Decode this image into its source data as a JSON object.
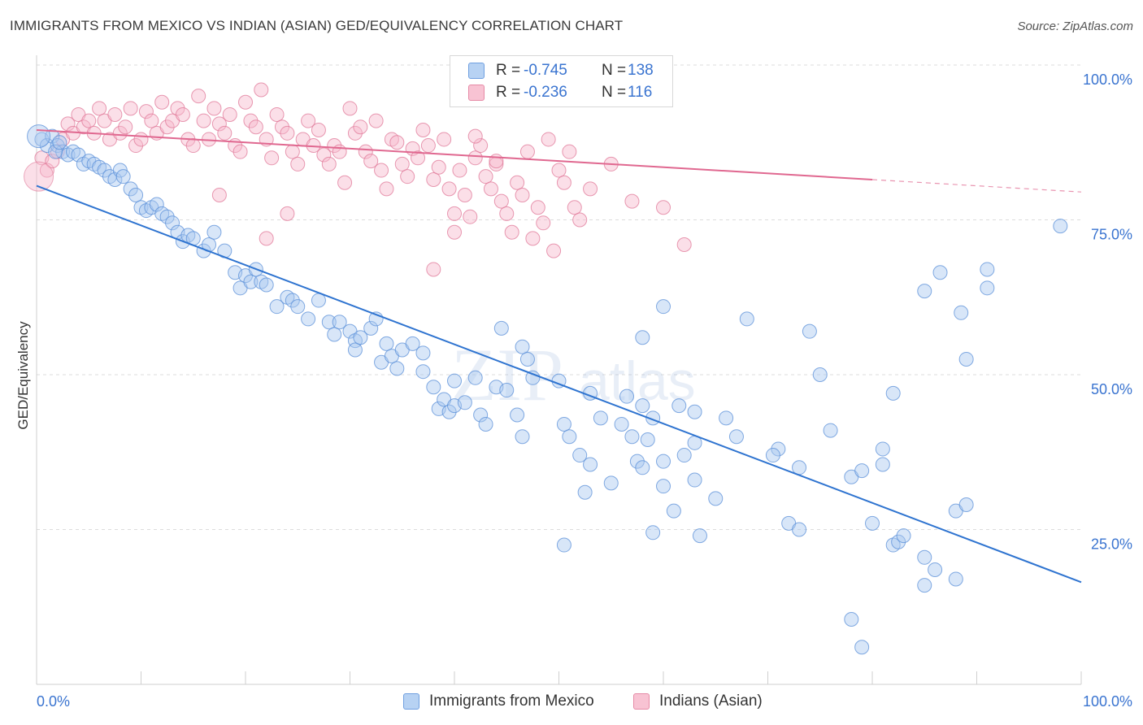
{
  "title": "IMMIGRANTS FROM MEXICO VS INDIAN (ASIAN) GED/EQUIVALENCY CORRELATION CHART",
  "source": "Source: ZipAtlas.com",
  "watermark": {
    "zip": "ZIP",
    "atlas": "atlas"
  },
  "legend": {
    "rows": [
      {
        "r_label": "R =",
        "r_value": "-0.745",
        "n_label": "N =",
        "n_value": "138"
      },
      {
        "r_label": "R =",
        "r_value": "-0.236",
        "n_label": "N =",
        "n_value": "116"
      }
    ]
  },
  "bottom_legend": {
    "series1": "Immigrants from Mexico",
    "series2": "Indians (Asian)"
  },
  "colors": {
    "blue_fill": "#a9c8f0",
    "blue_stroke": "#5a8fd8",
    "blue_line": "#2f74d0",
    "pink_fill": "#f7b9cc",
    "pink_stroke": "#e07898",
    "pink_line": "#e06890",
    "tick_label": "#3a74d0"
  },
  "chart_data": {
    "type": "scatter",
    "title": "IMMIGRANTS FROM MEXICO VS INDIAN (ASIAN) GED/EQUIVALENCY CORRELATION CHART",
    "xlabel": "",
    "ylabel": "GED/Equivalency",
    "xlim": [
      0,
      100
    ],
    "ylim": [
      0,
      100
    ],
    "x_tick_labels": [
      "0.0%",
      "100.0%"
    ],
    "y_tick_labels": [
      "100.0%",
      "75.0%",
      "50.0%",
      "25.0%"
    ],
    "y_tick_values": [
      100,
      75,
      50,
      25
    ],
    "grid": true,
    "legend_position": "top-center",
    "series": [
      {
        "name": "Immigrants from Mexico",
        "R": -0.745,
        "N": 138,
        "trend": {
          "x": [
            0,
            100
          ],
          "y": [
            80.5,
            16.5
          ]
        },
        "points": [
          [
            0.5,
            88
          ],
          [
            1,
            87
          ],
          [
            1.5,
            88.5
          ],
          [
            2,
            87
          ],
          [
            2.5,
            86
          ],
          [
            3,
            85.5
          ],
          [
            1.8,
            86
          ],
          [
            2.2,
            87.5
          ],
          [
            3.5,
            86
          ],
          [
            4,
            85.5
          ],
          [
            4.5,
            84
          ],
          [
            5,
            84.5
          ],
          [
            5.5,
            84
          ],
          [
            6,
            83.5
          ],
          [
            6.5,
            83
          ],
          [
            7,
            82
          ],
          [
            7.5,
            81.5
          ],
          [
            8,
            83
          ],
          [
            8.3,
            82
          ],
          [
            9,
            80
          ],
          [
            9.5,
            79
          ],
          [
            10,
            77
          ],
          [
            10.5,
            76.5
          ],
          [
            11,
            77
          ],
          [
            11.5,
            77.5
          ],
          [
            12,
            76
          ],
          [
            12.5,
            75.5
          ],
          [
            13,
            74.5
          ],
          [
            13.5,
            73
          ],
          [
            14,
            71.5
          ],
          [
            14.5,
            72.5
          ],
          [
            15,
            72
          ],
          [
            16,
            70
          ],
          [
            16.5,
            71
          ],
          [
            17,
            73
          ],
          [
            18,
            70
          ],
          [
            19,
            66.5
          ],
          [
            19.5,
            64
          ],
          [
            20,
            66
          ],
          [
            20.5,
            65
          ],
          [
            21,
            67
          ],
          [
            21.5,
            65
          ],
          [
            22,
            64.5
          ],
          [
            23,
            61
          ],
          [
            24,
            62.5
          ],
          [
            24.5,
            62
          ],
          [
            25,
            61
          ],
          [
            26,
            59
          ],
          [
            27,
            62
          ],
          [
            28,
            58.5
          ],
          [
            28.5,
            56.5
          ],
          [
            29,
            58.5
          ],
          [
            30,
            57
          ],
          [
            30.5,
            55.5
          ],
          [
            30.5,
            54
          ],
          [
            31,
            56
          ],
          [
            32,
            57.5
          ],
          [
            32.5,
            59
          ],
          [
            33,
            52
          ],
          [
            33.5,
            55
          ],
          [
            34,
            53
          ],
          [
            34.5,
            51
          ],
          [
            35,
            54
          ],
          [
            36,
            55
          ],
          [
            37,
            53.5
          ],
          [
            37,
            50.5
          ],
          [
            38,
            48
          ],
          [
            38.5,
            44.5
          ],
          [
            39,
            46
          ],
          [
            39.5,
            44
          ],
          [
            40,
            49
          ],
          [
            40,
            45
          ],
          [
            41,
            45.5
          ],
          [
            42,
            49.5
          ],
          [
            42.5,
            43.5
          ],
          [
            43,
            42
          ],
          [
            44,
            48
          ],
          [
            44.5,
            57.5
          ],
          [
            45,
            47.5
          ],
          [
            46,
            43.5
          ],
          [
            46.5,
            40
          ],
          [
            46.5,
            54.5
          ],
          [
            47,
            52.5
          ],
          [
            47.5,
            49.5
          ],
          [
            50,
            49
          ],
          [
            50.5,
            42
          ],
          [
            51,
            40
          ],
          [
            52,
            37
          ],
          [
            52.5,
            31
          ],
          [
            53,
            35.5
          ],
          [
            54,
            43
          ],
          [
            55,
            32.5
          ],
          [
            56,
            42
          ],
          [
            56.5,
            46.5
          ],
          [
            57,
            40
          ],
          [
            57.5,
            36
          ],
          [
            58,
            45
          ],
          [
            58,
            35
          ],
          [
            58.5,
            39.5
          ],
          [
            59,
            43
          ],
          [
            60,
            32
          ],
          [
            61,
            28
          ],
          [
            62,
            37
          ],
          [
            63,
            39
          ],
          [
            63,
            33
          ],
          [
            65,
            30
          ],
          [
            66,
            43
          ],
          [
            67,
            40
          ],
          [
            71,
            38
          ],
          [
            73,
            35
          ],
          [
            75,
            50
          ],
          [
            78,
            33.5
          ],
          [
            79,
            34.5
          ],
          [
            80,
            26
          ],
          [
            81,
            35.5
          ],
          [
            82,
            22.5
          ],
          [
            82.5,
            23
          ],
          [
            83,
            24
          ],
          [
            85,
            20.5
          ],
          [
            86,
            18.5
          ],
          [
            88,
            28
          ],
          [
            89,
            29
          ],
          [
            85,
            16
          ],
          [
            88,
            17
          ],
          [
            50.5,
            22.5
          ],
          [
            59,
            24.5
          ],
          [
            60,
            36
          ],
          [
            61.5,
            45
          ],
          [
            63.5,
            24
          ],
          [
            53,
            47
          ],
          [
            63,
            44
          ],
          [
            68,
            59
          ],
          [
            72,
            26
          ],
          [
            73,
            25
          ],
          [
            81,
            38
          ],
          [
            89,
            52.5
          ],
          [
            91,
            67
          ],
          [
            98,
            74
          ],
          [
            88.5,
            60
          ],
          [
            58,
            56
          ],
          [
            60,
            61
          ],
          [
            74,
            57
          ],
          [
            82,
            47
          ],
          [
            86.5,
            66.5
          ],
          [
            91,
            64
          ],
          [
            76,
            41
          ],
          [
            85,
            63.5
          ],
          [
            78,
            10.5
          ],
          [
            79,
            6
          ],
          [
            70.5,
            37
          ]
        ]
      },
      {
        "name": "Indians (Asian)",
        "R": -0.236,
        "N": 116,
        "trend": {
          "x": [
            0,
            100
          ],
          "y": [
            89.5,
            79.5
          ]
        },
        "points": [
          [
            0.5,
            85
          ],
          [
            1,
            83
          ],
          [
            1.5,
            84.5
          ],
          [
            2,
            86
          ],
          [
            2.5,
            88
          ],
          [
            3,
            90.5
          ],
          [
            3.5,
            89
          ],
          [
            4,
            92
          ],
          [
            4.5,
            90
          ],
          [
            5,
            91
          ],
          [
            5.5,
            89
          ],
          [
            6,
            93
          ],
          [
            6.5,
            91
          ],
          [
            7,
            88
          ],
          [
            7.5,
            92
          ],
          [
            8,
            89
          ],
          [
            8.5,
            90
          ],
          [
            9,
            93
          ],
          [
            9.5,
            87
          ],
          [
            10,
            88
          ],
          [
            10.5,
            92.5
          ],
          [
            11,
            91
          ],
          [
            11.5,
            89
          ],
          [
            12,
            94
          ],
          [
            12.5,
            90
          ],
          [
            13,
            91
          ],
          [
            13.5,
            93
          ],
          [
            14,
            92
          ],
          [
            14.5,
            88
          ],
          [
            15,
            87
          ],
          [
            15.5,
            95
          ],
          [
            16,
            91
          ],
          [
            16.5,
            88
          ],
          [
            17,
            93
          ],
          [
            17.5,
            90.5
          ],
          [
            18,
            89
          ],
          [
            18.5,
            92
          ],
          [
            19,
            87
          ],
          [
            19.5,
            86
          ],
          [
            20,
            94
          ],
          [
            20.5,
            91
          ],
          [
            21,
            90
          ],
          [
            21.5,
            96
          ],
          [
            22,
            88
          ],
          [
            22.5,
            85
          ],
          [
            23,
            92
          ],
          [
            23.5,
            90
          ],
          [
            24,
            89
          ],
          [
            24.5,
            86
          ],
          [
            25,
            84
          ],
          [
            25.5,
            88
          ],
          [
            26,
            91
          ],
          [
            26.5,
            87
          ],
          [
            27,
            89.5
          ],
          [
            27.5,
            85.5
          ],
          [
            28,
            84
          ],
          [
            28.5,
            87
          ],
          [
            29,
            86
          ],
          [
            29.5,
            81
          ],
          [
            30,
            93
          ],
          [
            30.5,
            89
          ],
          [
            31,
            90
          ],
          [
            31.5,
            86
          ],
          [
            32,
            84.5
          ],
          [
            32.5,
            91
          ],
          [
            33,
            83
          ],
          [
            33.5,
            80
          ],
          [
            34,
            88
          ],
          [
            34.5,
            87.5
          ],
          [
            35,
            84
          ],
          [
            35.5,
            82
          ],
          [
            36,
            86.5
          ],
          [
            36.5,
            85
          ],
          [
            37,
            89.5
          ],
          [
            37.5,
            87
          ],
          [
            38,
            81.5
          ],
          [
            38.5,
            83.5
          ],
          [
            39,
            88
          ],
          [
            39.5,
            80
          ],
          [
            40,
            76
          ],
          [
            40.5,
            83
          ],
          [
            41,
            79
          ],
          [
            41.5,
            75.5
          ],
          [
            42,
            85
          ],
          [
            42.5,
            87
          ],
          [
            43,
            82
          ],
          [
            43.5,
            80
          ],
          [
            44,
            84
          ],
          [
            44.5,
            78
          ],
          [
            45,
            76
          ],
          [
            45.5,
            73
          ],
          [
            46,
            81
          ],
          [
            46.5,
            79
          ],
          [
            47,
            86
          ],
          [
            47.5,
            72
          ],
          [
            48,
            77
          ],
          [
            48.5,
            74.5
          ],
          [
            49,
            88
          ],
          [
            49.5,
            70
          ],
          [
            50,
            83
          ],
          [
            50.5,
            81
          ],
          [
            51,
            86
          ],
          [
            51.5,
            77
          ],
          [
            52,
            75
          ],
          [
            53,
            80
          ],
          [
            55,
            84
          ],
          [
            57,
            78
          ],
          [
            60,
            77
          ],
          [
            62,
            71
          ],
          [
            24,
            76
          ],
          [
            22,
            72
          ],
          [
            17.5,
            79
          ],
          [
            38,
            67
          ],
          [
            40,
            73
          ],
          [
            42,
            88.5
          ],
          [
            44,
            84.5
          ]
        ]
      }
    ]
  }
}
